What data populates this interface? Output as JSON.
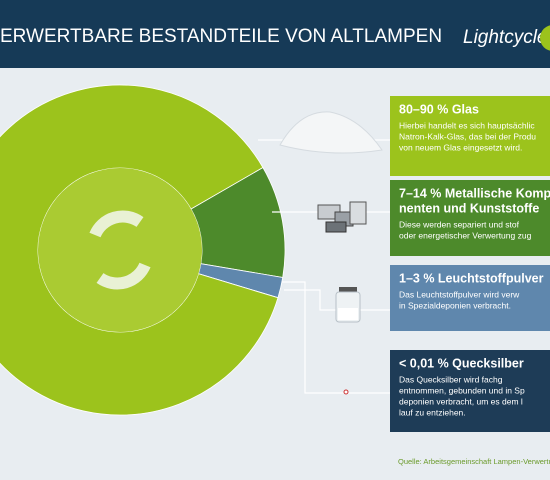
{
  "header": {
    "title": "ERWERTBARE BESTANDTEILE VON ALTLAMPEN",
    "brand": "Lightcycle"
  },
  "chart_data": {
    "type": "donut",
    "values": [
      87,
      11,
      2,
      0.01
    ],
    "colors": [
      "#9cc31c",
      "#4d8a2b",
      "#5f87ad",
      "#1e3c57"
    ]
  },
  "boxes": [
    {
      "title": [
        "80–90 % Glas"
      ],
      "body": [
        "Hierbei handelt es sich hauptsächlic",
        "Natron-Kalk-Glas, das bei der Produ",
        "von neuem Glas eingesetzt wird."
      ]
    },
    {
      "title": [
        "7–14 % Metallische Komp",
        "nenten und Kunststoffe"
      ],
      "body": [
        "Diese werden separiert und stof",
        "oder energetischer Verwertung zug"
      ]
    },
    {
      "title": [
        "1–3 % Leuchtstoffpulver"
      ],
      "body": [
        "Das Leuchtstoffpulver wird verw",
        "in Spezialdeponien verbracht."
      ]
    },
    {
      "title": [
        "< 0,01 % Quecksilber"
      ],
      "body": [
        "Das Quecksilber wird fachg",
        "entnommen, gebunden und in Sp",
        "deponien verbracht, um es dem l",
        "lauf zu entziehen."
      ]
    }
  ],
  "source": "Quelle: Arbeitsgemeinschaft Lampen-Verwertu"
}
